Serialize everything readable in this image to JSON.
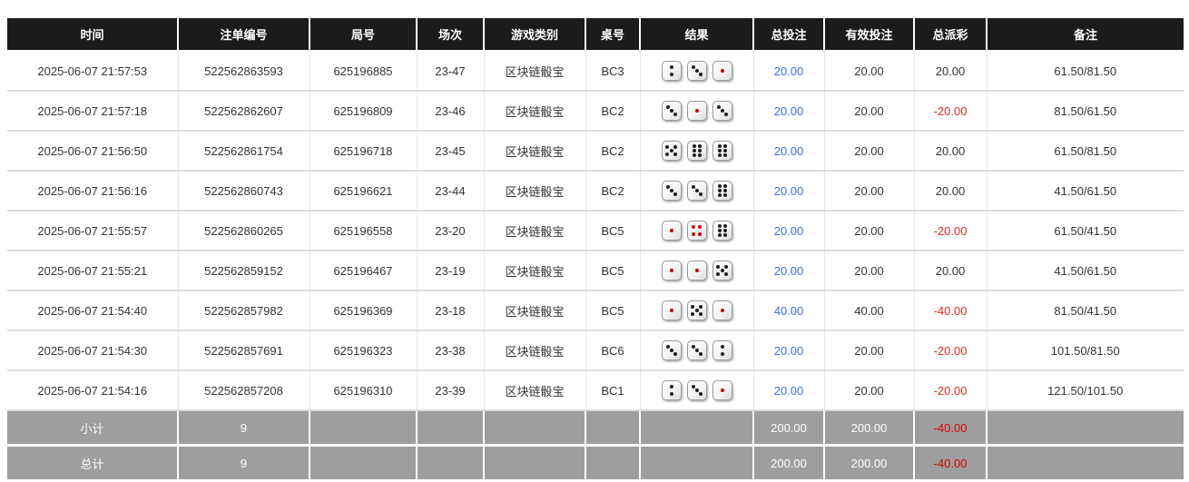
{
  "colors": {
    "header_bg": "#1b1b1b",
    "header_text": "#ffffff",
    "row_text": "#333333",
    "total_bet_blue": "#3d6edb",
    "negative_red": "#e02b2b",
    "summary_bg": "#9e9e9e",
    "summary_negative_red": "#d50000",
    "dice_pip_red": "#c40000",
    "dice_pip_black": "#1e1e1e"
  },
  "table": {
    "columns": [
      {
        "key": "time",
        "label": "时间"
      },
      {
        "key": "bet_id",
        "label": "注单编号"
      },
      {
        "key": "round",
        "label": "局号"
      },
      {
        "key": "session",
        "label": "场次"
      },
      {
        "key": "game",
        "label": "游戏类别"
      },
      {
        "key": "table_no",
        "label": "桌号"
      },
      {
        "key": "result",
        "label": "结果"
      },
      {
        "key": "total_bet",
        "label": "总投注"
      },
      {
        "key": "valid_bet",
        "label": "有效投注"
      },
      {
        "key": "payout",
        "label": "总派彩"
      },
      {
        "key": "remark",
        "label": "备注"
      }
    ],
    "rows": [
      {
        "time": "2025-06-07 21:57:53",
        "bet_id": "522562863593",
        "round": "625196885",
        "session": "23-47",
        "game": "区块链骰宝",
        "table_no": "BC3",
        "dice": [
          2,
          3,
          1
        ],
        "total_bet": "20.00",
        "valid_bet": "20.00",
        "payout": "20.00",
        "remark": "61.50/81.50"
      },
      {
        "time": "2025-06-07 21:57:18",
        "bet_id": "522562862607",
        "round": "625196809",
        "session": "23-46",
        "game": "区块链骰宝",
        "table_no": "BC2",
        "dice": [
          3,
          1,
          3
        ],
        "total_bet": "20.00",
        "valid_bet": "20.00",
        "payout": "-20.00",
        "remark": "81.50/61.50"
      },
      {
        "time": "2025-06-07 21:56:50",
        "bet_id": "522562861754",
        "round": "625196718",
        "session": "23-45",
        "game": "区块链骰宝",
        "table_no": "BC2",
        "dice": [
          5,
          6,
          6
        ],
        "total_bet": "20.00",
        "valid_bet": "20.00",
        "payout": "20.00",
        "remark": "61.50/81.50"
      },
      {
        "time": "2025-06-07 21:56:16",
        "bet_id": "522562860743",
        "round": "625196621",
        "session": "23-44",
        "game": "区块链骰宝",
        "table_no": "BC2",
        "dice": [
          3,
          3,
          6
        ],
        "total_bet": "20.00",
        "valid_bet": "20.00",
        "payout": "20.00",
        "remark": "41.50/61.50"
      },
      {
        "time": "2025-06-07 21:55:57",
        "bet_id": "522562860265",
        "round": "625196558",
        "session": "23-20",
        "game": "区块链骰宝",
        "table_no": "BC5",
        "dice": [
          1,
          4,
          6
        ],
        "total_bet": "20.00",
        "valid_bet": "20.00",
        "payout": "-20.00",
        "remark": "61.50/41.50"
      },
      {
        "time": "2025-06-07 21:55:21",
        "bet_id": "522562859152",
        "round": "625196467",
        "session": "23-19",
        "game": "区块链骰宝",
        "table_no": "BC5",
        "dice": [
          1,
          1,
          5
        ],
        "total_bet": "20.00",
        "valid_bet": "20.00",
        "payout": "20.00",
        "remark": "41.50/61.50"
      },
      {
        "time": "2025-06-07 21:54:40",
        "bet_id": "522562857982",
        "round": "625196369",
        "session": "23-18",
        "game": "区块链骰宝",
        "table_no": "BC5",
        "dice": [
          1,
          5,
          1
        ],
        "total_bet": "40.00",
        "valid_bet": "40.00",
        "payout": "-40.00",
        "remark": "81.50/41.50"
      },
      {
        "time": "2025-06-07 21:54:30",
        "bet_id": "522562857691",
        "round": "625196323",
        "session": "23-38",
        "game": "区块链骰宝",
        "table_no": "BC6",
        "dice": [
          3,
          3,
          2
        ],
        "total_bet": "20.00",
        "valid_bet": "20.00",
        "payout": "-20.00",
        "remark": "101.50/81.50"
      },
      {
        "time": "2025-06-07 21:54:16",
        "bet_id": "522562857208",
        "round": "625196310",
        "session": "23-39",
        "game": "区块链骰宝",
        "table_no": "BC1",
        "dice": [
          2,
          3,
          1
        ],
        "total_bet": "20.00",
        "valid_bet": "20.00",
        "payout": "-20.00",
        "remark": "121.50/101.50"
      }
    ],
    "summary": [
      {
        "label": "小计",
        "count": "9",
        "total_bet": "200.00",
        "valid_bet": "200.00",
        "payout": "-40.00"
      },
      {
        "label": "总计",
        "count": "9",
        "total_bet": "200.00",
        "valid_bet": "200.00",
        "payout": "-40.00"
      }
    ]
  }
}
